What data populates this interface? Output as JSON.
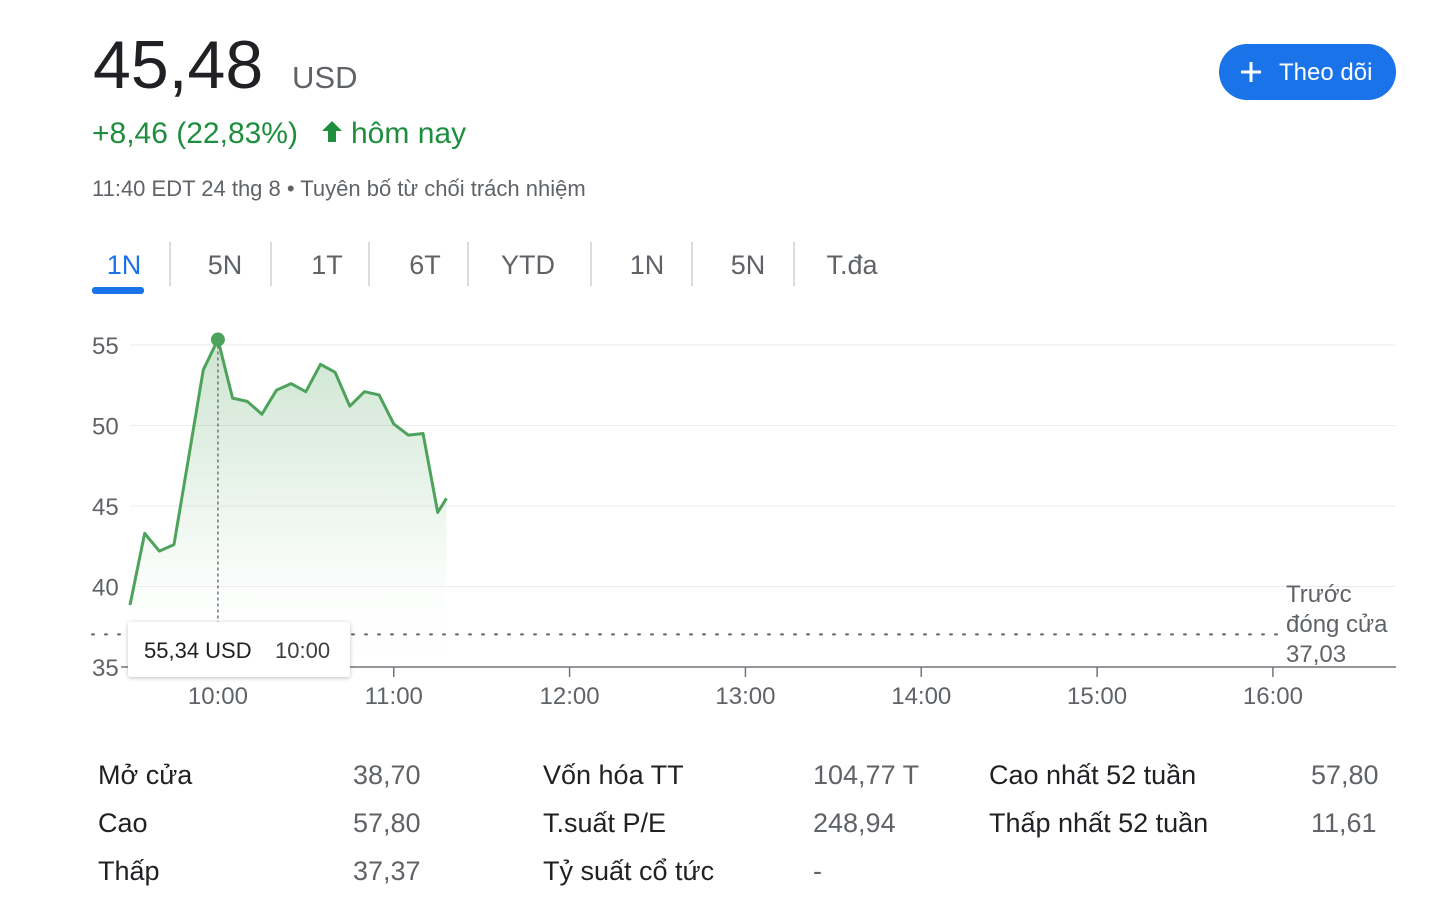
{
  "header": {
    "price": "45,48",
    "currency": "USD",
    "change": "+8,46 (22,83%)",
    "change_suffix": "hôm nay",
    "timestamp": "11:40 EDT 24 thg 8",
    "disclaimer": "Tuyên bố từ chối trách nhiệm",
    "follow_button": "Theo dõi"
  },
  "tabs": {
    "items": [
      "1N",
      "5N",
      "1T",
      "6T",
      "YTD",
      "1N",
      "5N",
      "T.đa"
    ],
    "active": 0
  },
  "chart_data": {
    "type": "line",
    "x": [
      570,
      575,
      580,
      585,
      590,
      595,
      600,
      605,
      610,
      615,
      620,
      625,
      630,
      635,
      640,
      645,
      650,
      655,
      660,
      665,
      670,
      675,
      678
    ],
    "values": [
      38.85,
      43.3,
      42.2,
      42.6,
      48.0,
      53.45,
      55.34,
      51.7,
      51.5,
      50.7,
      52.2,
      52.6,
      52.1,
      53.8,
      53.3,
      51.2,
      52.1,
      51.9,
      50.1,
      49.4,
      49.5,
      44.6,
      45.48
    ],
    "color": "#4ea35c",
    "xlim": [
      570,
      1002
    ],
    "xticks": [
      {
        "value": 600,
        "label": "10:00"
      },
      {
        "value": 660,
        "label": "11:00"
      },
      {
        "value": 720,
        "label": "12:00"
      },
      {
        "value": 780,
        "label": "13:00"
      },
      {
        "value": 840,
        "label": "14:00"
      },
      {
        "value": 900,
        "label": "15:00"
      },
      {
        "value": 960,
        "label": "16:00"
      }
    ],
    "ylim": [
      35,
      55
    ],
    "yticks": [
      35,
      40,
      45,
      50,
      55
    ],
    "grid": true,
    "previous_close": {
      "label": [
        "Trước",
        "đóng cửa"
      ],
      "value": 37.03,
      "value_label": "37,03"
    },
    "tooltip": {
      "index": 6,
      "label": "55,34 USD",
      "time": "10:00"
    }
  },
  "stats": [
    [
      [
        "Mở cửa",
        "38,70"
      ],
      [
        "Cao",
        "57,80"
      ],
      [
        "Thấp",
        "37,37"
      ]
    ],
    [
      [
        "Vốn hóa TT",
        "104,77 T"
      ],
      [
        "T.suất P/E",
        "248,94"
      ],
      [
        "Tỷ suất cổ tức",
        "-"
      ]
    ],
    [
      [
        "Cao nhất 52 tuần",
        "57,80"
      ],
      [
        "Thấp nhất 52 tuần",
        "11,61"
      ]
    ]
  ]
}
